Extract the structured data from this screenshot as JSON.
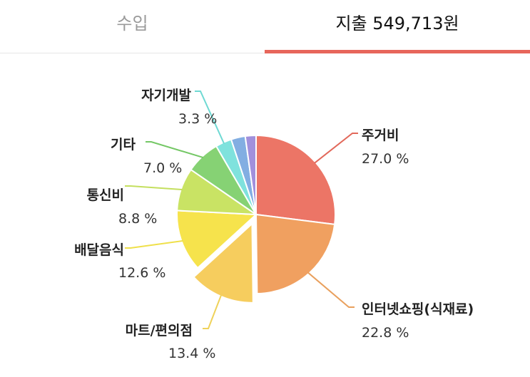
{
  "tabs": {
    "income_label": "수입",
    "expense_label": "지출 549,713원"
  },
  "colors": {
    "accent": "#e7665b",
    "inactive_tab": "#9a9a9a"
  },
  "chart_data": {
    "type": "pie",
    "categories": [
      "주거비",
      "인터넷쇼핑(식재료)",
      "마트/편의점",
      "배달음식",
      "통신비",
      "기타",
      "자기개발",
      "",
      ""
    ],
    "values": [
      27.0,
      22.8,
      13.4,
      12.6,
      8.8,
      7.0,
      3.3,
      2.9,
      2.2
    ],
    "labels": [
      "27.0 %",
      "22.8 %",
      "13.4 %",
      "12.6 %",
      "8.8 %",
      "7.0 %",
      "3.3 %",
      "",
      ""
    ],
    "colors": [
      "#ec7566",
      "#f0a060",
      "#f6cd5e",
      "#f6e34c",
      "#c9e364",
      "#86d274",
      "#7fe2dd",
      "#82aee2",
      "#a190dc"
    ],
    "exploded": "마트/편의점",
    "start": "12 o'clock, clockwise"
  }
}
